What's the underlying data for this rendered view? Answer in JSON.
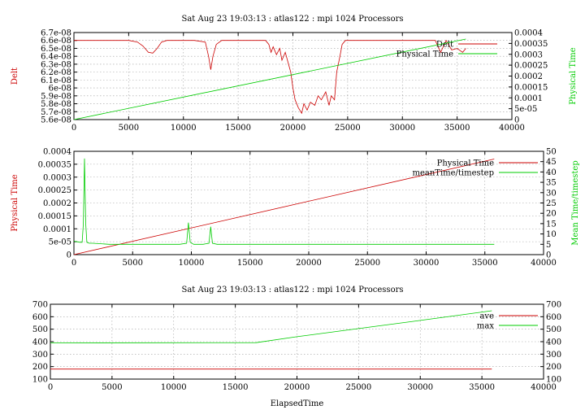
{
  "chart_data": [
    {
      "type": "line",
      "title": "Sat Aug 23 19:03:13 : atlas122 : mpi 1024 Processors",
      "ylabel": "Delt",
      "y2label": "Physical Time",
      "xlabel": "",
      "xlim": [
        0,
        40000
      ],
      "ylim": [
        5.6e-08,
        6.7e-08
      ],
      "y2lim": [
        0,
        0.0004
      ],
      "xticks": [
        0,
        5000,
        10000,
        15000,
        20000,
        25000,
        30000,
        35000,
        40000
      ],
      "xtick_labels": [
        "0",
        "5000",
        "10000",
        "15000",
        "20000",
        "25000",
        "30000",
        "35000",
        "40000"
      ],
      "yticks": [
        5.6e-08,
        5.7e-08,
        5.8e-08,
        5.9e-08,
        6e-08,
        6.1e-08,
        6.2e-08,
        6.3e-08,
        6.4e-08,
        6.5e-08,
        6.6e-08,
        6.7e-08
      ],
      "ytick_labels": [
        "5.6e-08",
        "5.7e-08",
        "5.8e-08",
        "5.9e-08",
        "6e-08",
        "6.1e-08",
        "6.2e-08",
        "6.3e-08",
        "6.4e-08",
        "6.5e-08",
        "6.6e-08",
        "6.7e-08"
      ],
      "y2ticks": [
        0,
        5e-05,
        0.0001,
        0.00015,
        0.0002,
        0.00025,
        0.0003,
        0.00035,
        0.0004
      ],
      "y2tick_labels": [
        "0",
        "5e-05",
        "0.0001",
        "0.00015",
        "0.0002",
        "0.00025",
        "0.0003",
        "0.00035",
        "0.0004"
      ],
      "grid": true,
      "legend_position": "top-right",
      "ylabel_color": "#cc0000",
      "y2label_color": "#00cc00",
      "series": [
        {
          "name": "Delt",
          "axis": "y",
          "color": "#cc0000",
          "x": [
            0,
            2500,
            5000,
            5800,
            6300,
            6800,
            7200,
            7600,
            8000,
            8500,
            9000,
            10000,
            11000,
            12000,
            12300,
            12500,
            12700,
            13000,
            13500,
            14500,
            16000,
            17500,
            17800,
            18000,
            18200,
            18500,
            18800,
            19000,
            19300,
            19600,
            19800,
            20000,
            20200,
            20500,
            20800,
            21000,
            21300,
            21600,
            22000,
            22300,
            22600,
            23000,
            23300,
            23500,
            23800,
            24000,
            24300,
            24500,
            24800,
            25000,
            26000,
            28000,
            30000,
            32000,
            33000,
            33500,
            34000,
            34500,
            35000,
            35500,
            35800
          ],
          "y": [
            6.6e-08,
            6.6e-08,
            6.6e-08,
            6.58e-08,
            6.53e-08,
            6.45e-08,
            6.44e-08,
            6.5e-08,
            6.58e-08,
            6.6e-08,
            6.6e-08,
            6.6e-08,
            6.6e-08,
            6.58e-08,
            6.4e-08,
            6.23e-08,
            6.4e-08,
            6.55e-08,
            6.6e-08,
            6.6e-08,
            6.6e-08,
            6.6e-08,
            6.55e-08,
            6.45e-08,
            6.52e-08,
            6.42e-08,
            6.5e-08,
            6.35e-08,
            6.45e-08,
            6.3e-08,
            6.2e-08,
            6e-08,
            5.85e-08,
            5.75e-08,
            5.68e-08,
            5.8e-08,
            5.72e-08,
            5.82e-08,
            5.78e-08,
            5.9e-08,
            5.85e-08,
            5.95e-08,
            5.78e-08,
            5.9e-08,
            5.85e-08,
            6.2e-08,
            6.4e-08,
            6.55e-08,
            6.6e-08,
            6.6e-08,
            6.6e-08,
            6.6e-08,
            6.6e-08,
            6.6e-08,
            6.6e-08,
            6.45e-08,
            6.6e-08,
            6.48e-08,
            6.5e-08,
            6.45e-08,
            6.5e-08
          ]
        },
        {
          "name": "Physical Time",
          "axis": "y2",
          "color": "#00cc00",
          "x": [
            0,
            35800
          ],
          "y": [
            0,
            0.00037
          ]
        }
      ]
    },
    {
      "type": "line",
      "title": "",
      "ylabel": "Physical Time",
      "y2label": "Mean Time/timestep",
      "xlabel": "",
      "xlim": [
        0,
        40000
      ],
      "ylim": [
        0,
        0.0004
      ],
      "y2lim": [
        0,
        50
      ],
      "xticks": [
        0,
        5000,
        10000,
        15000,
        20000,
        25000,
        30000,
        35000,
        40000
      ],
      "xtick_labels": [
        "0",
        "5000",
        "10000",
        "15000",
        "20000",
        "25000",
        "30000",
        "35000",
        "40000"
      ],
      "yticks": [
        0,
        5e-05,
        0.0001,
        0.00015,
        0.0002,
        0.00025,
        0.0003,
        0.00035,
        0.0004
      ],
      "ytick_labels": [
        "0",
        "5e-05",
        "0.0001",
        "0.00015",
        "0.0002",
        "0.00025",
        "0.0003",
        "0.00035",
        "0.0004"
      ],
      "y2ticks": [
        0,
        5,
        10,
        15,
        20,
        25,
        30,
        35,
        40,
        45,
        50
      ],
      "y2tick_labels": [
        "0",
        "5",
        "10",
        "15",
        "20",
        "25",
        "30",
        "35",
        "40",
        "45",
        "50"
      ],
      "grid": true,
      "legend_position": "top-right",
      "ylabel_color": "#cc0000",
      "y2label_color": "#00cc00",
      "series": [
        {
          "name": "Physical Time",
          "axis": "y",
          "color": "#cc0000",
          "x": [
            0,
            35800
          ],
          "y": [
            0,
            0.00037
          ]
        },
        {
          "name": "meanTime/timestep",
          "axis": "y2",
          "color": "#00cc00",
          "x": [
            0,
            500,
            700,
            800,
            900,
            1000,
            1100,
            1300,
            1600,
            3000,
            5000,
            7000,
            9000,
            9600,
            9750,
            9900,
            10200,
            11000,
            11500,
            11650,
            11800,
            12200,
            15000,
            20000,
            25000,
            30000,
            35800
          ],
          "y": [
            6.5,
            6.0,
            6.0,
            15.0,
            46.5,
            15.0,
            6.0,
            5.5,
            5.5,
            5.0,
            5.0,
            5.0,
            5.0,
            5.5,
            15.5,
            6.0,
            5.0,
            5.0,
            5.5,
            13.5,
            5.5,
            5.0,
            5.0,
            5.0,
            5.0,
            5.0,
            5.0
          ]
        }
      ]
    },
    {
      "type": "line",
      "title": "Sat Aug 23 19:03:13 : atlas122 : mpi 1024 Processors",
      "ylabel": "Memory usage [MB]",
      "y2label": "",
      "xlabel": "ElapsedTime",
      "xlim": [
        0,
        40000
      ],
      "ylim": [
        100,
        700
      ],
      "y2lim": [
        100,
        700
      ],
      "xticks": [
        0,
        5000,
        10000,
        15000,
        20000,
        25000,
        30000,
        35000,
        40000
      ],
      "xtick_labels": [
        "0",
        "5000",
        "10000",
        "15000",
        "20000",
        "25000",
        "30000",
        "35000",
        "40000"
      ],
      "yticks": [
        100,
        200,
        300,
        400,
        500,
        600,
        700
      ],
      "ytick_labels": [
        "100",
        "200",
        "300",
        "400",
        "500",
        "600",
        "700"
      ],
      "y2ticks": [
        100,
        200,
        300,
        400,
        500,
        600,
        700
      ],
      "y2tick_labels": [
        "100",
        "200",
        "300",
        "400",
        "500",
        "600",
        "700"
      ],
      "grid": true,
      "legend_position": "top-right",
      "ylabel_color": "#cc0000",
      "y2label_color": "#00cc00",
      "series": [
        {
          "name": "ave",
          "axis": "y",
          "color": "#cc0000",
          "x": [
            0,
            35800
          ],
          "y": [
            180,
            180
          ]
        },
        {
          "name": "max",
          "axis": "y",
          "color": "#00cc00",
          "x": [
            0,
            16700,
            20000,
            25000,
            30000,
            35800
          ],
          "y": [
            390,
            392,
            440,
            505,
            570,
            648
          ]
        }
      ]
    }
  ]
}
